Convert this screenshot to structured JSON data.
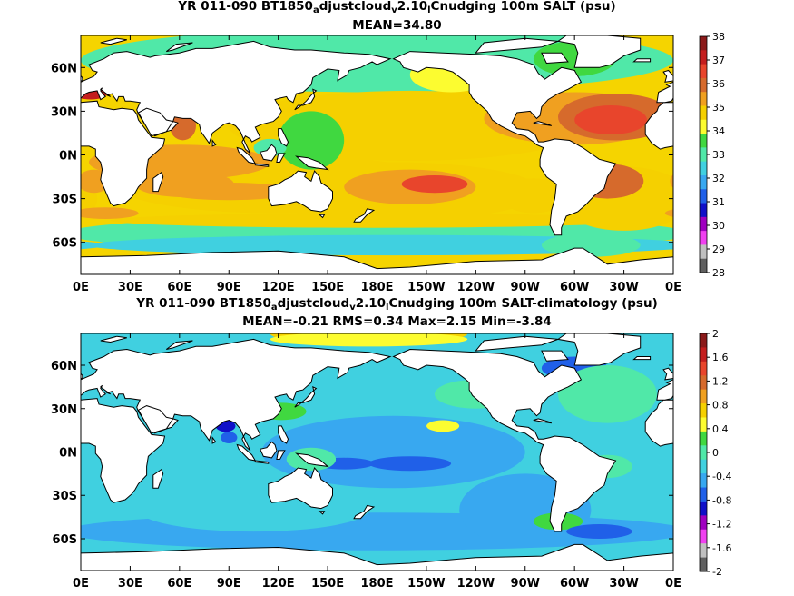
{
  "panels": [
    {
      "title_parts": [
        "YR 011-090 BT1850",
        "a",
        "djustcloud",
        "v",
        "2.10",
        "l",
        "Cnudging 100m SALT (psu)"
      ],
      "subtitle": "MEAN=34.80",
      "colorbar": {
        "labels": [
          "38",
          "37",
          "36",
          "35",
          "34",
          "33",
          "32",
          "31",
          "30",
          "29",
          "28"
        ],
        "colors": [
          "#8b1a1a",
          "#c41e1e",
          "#e8452c",
          "#d66a2c",
          "#f0a020",
          "#f5d000",
          "#fcfc30",
          "#40d840",
          "#50e8a8",
          "#40d0e0",
          "#38a8f0",
          "#2060e8",
          "#1010c8",
          "#a000c0",
          "#f040f0",
          "#c0c0c0",
          "#606060"
        ]
      },
      "background_color": "#f5d400"
    },
    {
      "title_parts": [
        "YR 011-090 BT1850",
        "a",
        "djustcloud",
        "v",
        "2.10",
        "l",
        "Cnudging 100m SALT-climatology (psu)"
      ],
      "subtitle": "MEAN=-0.21   RMS=0.34   Max=2.15   Min=-3.84",
      "colorbar": {
        "labels": [
          "2",
          "1.6",
          "1.2",
          "0.8",
          "0.4",
          "0",
          "-0.4",
          "-0.8",
          "-1.2",
          "-1.6",
          "-2"
        ],
        "colors": [
          "#8b1a1a",
          "#c41e1e",
          "#e8452c",
          "#d66a2c",
          "#f0a020",
          "#f5d000",
          "#fcfc30",
          "#40d840",
          "#50e8a8",
          "#40d0e0",
          "#38a8f0",
          "#2060e8",
          "#1010c8",
          "#a000c0",
          "#f040f0",
          "#c0c0c0",
          "#606060"
        ]
      },
      "background_color": "#40d0e0"
    }
  ],
  "axes": {
    "x_ticks": [
      "0E",
      "30E",
      "60E",
      "90E",
      "120E",
      "150E",
      "180E",
      "150W",
      "120W",
      "90W",
      "60W",
      "30W",
      "0E"
    ],
    "y_ticks": [
      "60N",
      "30N",
      "0N",
      "30S",
      "60S"
    ]
  }
}
